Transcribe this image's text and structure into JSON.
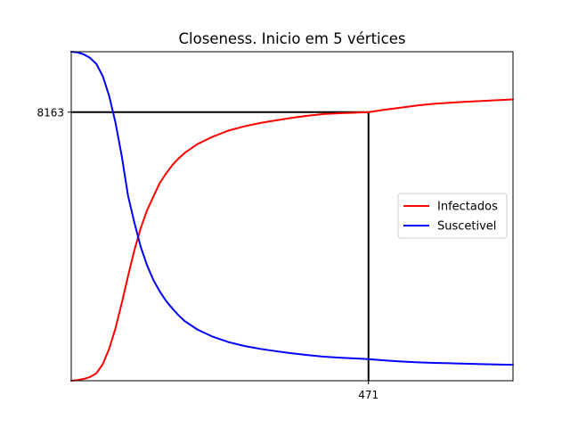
{
  "chart_data": {
    "type": "line",
    "title": "Closeness. Inicio em 5 vértices",
    "xlabel": "",
    "ylabel": "",
    "xlim": [
      0,
      700
    ],
    "ylim": [
      0,
      10000
    ],
    "x_ticks": [
      471
    ],
    "x_tick_labels": [
      "471"
    ],
    "y_ticks": [
      8163
    ],
    "y_tick_labels": [
      "8163"
    ],
    "grid": false,
    "legend_position": "center-right",
    "reference_lines": [
      {
        "orientation": "vertical",
        "x": 471,
        "y_from": 0,
        "y_to": 8163,
        "color": "#000000"
      },
      {
        "orientation": "horizontal",
        "y": 8163,
        "x_from": 0,
        "x_to": 471,
        "color": "#000000"
      }
    ],
    "x": [
      0,
      10,
      20,
      30,
      40,
      50,
      60,
      70,
      80,
      90,
      100,
      110,
      120,
      130,
      140,
      150,
      160,
      170,
      180,
      200,
      225,
      250,
      275,
      300,
      325,
      350,
      375,
      400,
      425,
      450,
      471,
      500,
      525,
      550,
      575,
      600,
      625,
      650,
      675,
      700
    ],
    "series": [
      {
        "name": "Infectados",
        "color": "#ff0000",
        "values": [
          0,
          22,
          57,
          114,
          229,
          507,
          965,
          1588,
          2356,
          3180,
          3966,
          4632,
          5174,
          5591,
          6002,
          6293,
          6549,
          6756,
          6928,
          7193,
          7424,
          7608,
          7735,
          7836,
          7918,
          7990,
          8055,
          8105,
          8131,
          8148,
          8163,
          8245,
          8307,
          8371,
          8419,
          8450,
          8478,
          8502,
          8525,
          8551
        ]
      },
      {
        "name": "Suscetivel",
        "color": "#0000ff",
        "values": [
          10000,
          9978,
          9919,
          9809,
          9624,
          9254,
          8662,
          7853,
          6831,
          5622,
          4809,
          4075,
          3515,
          3065,
          2723,
          2432,
          2200,
          1990,
          1810,
          1555,
          1332,
          1170,
          1054,
          967,
          896,
          834,
          780,
          733,
          702,
          679,
          658,
          612,
          581,
          558,
          543,
          531,
          519,
          506,
          494,
          485
        ]
      }
    ]
  }
}
